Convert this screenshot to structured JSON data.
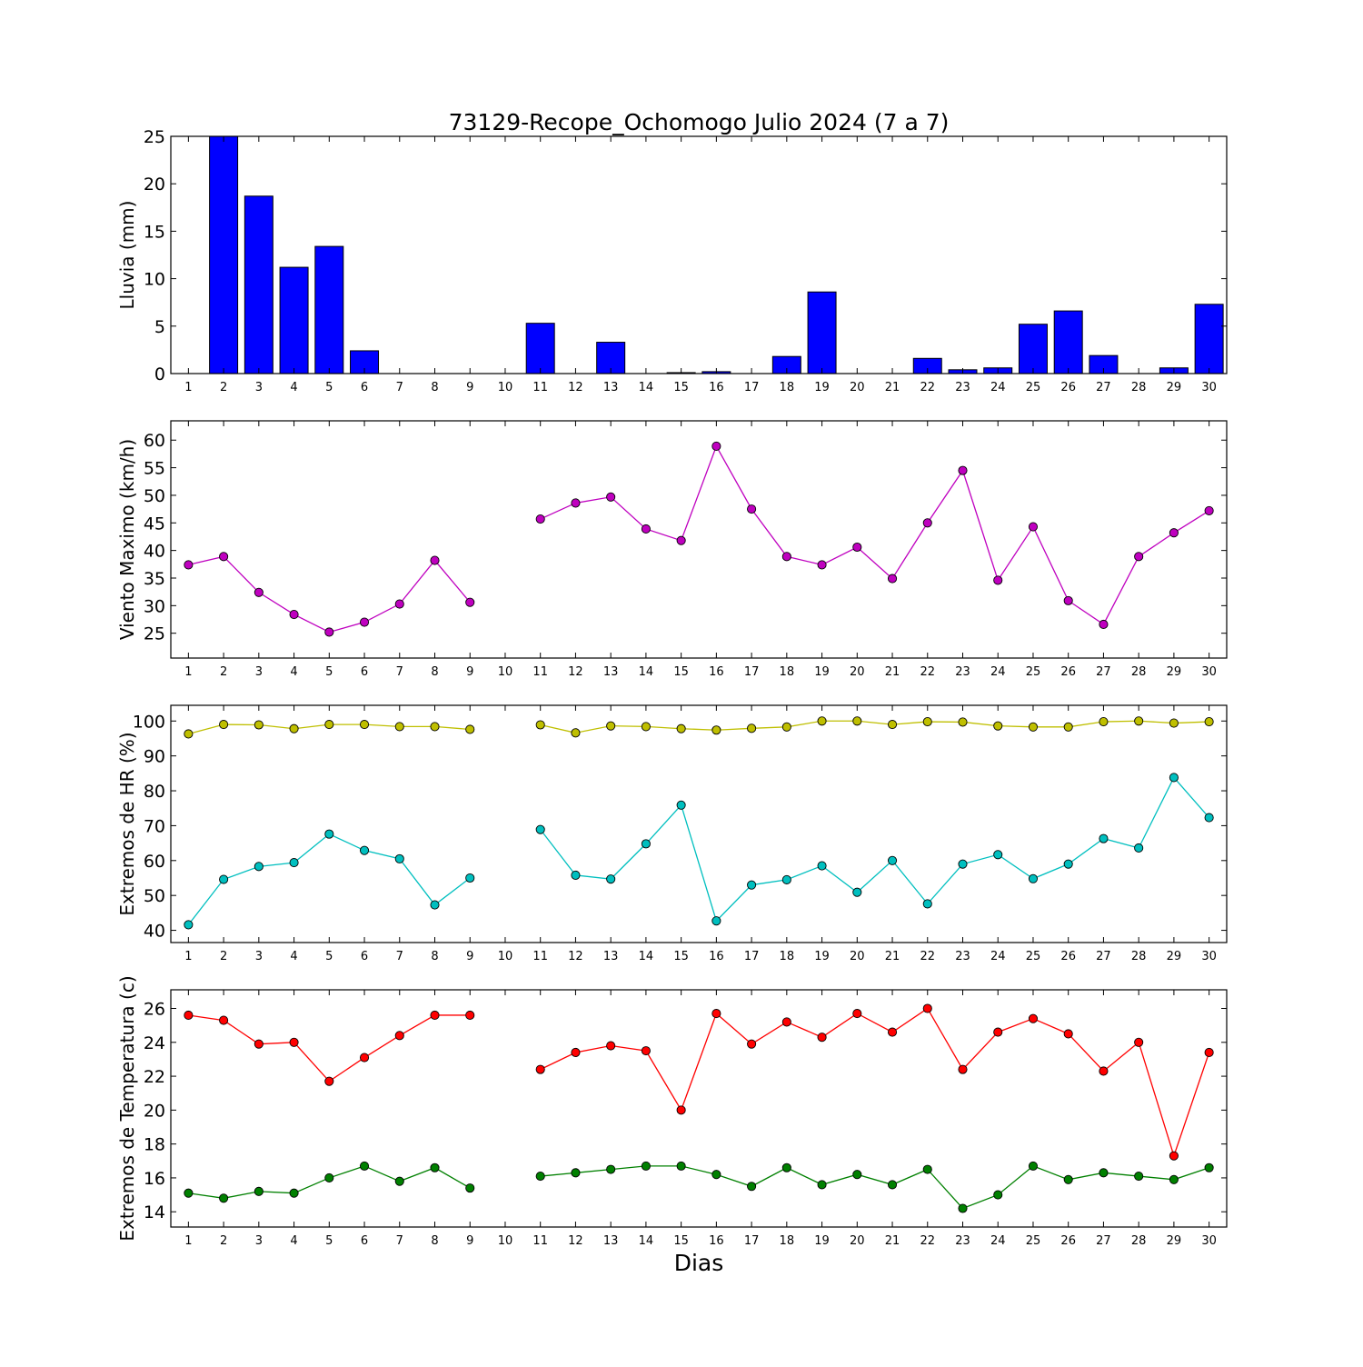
{
  "figure": {
    "title": "73129-Recope_Ochomogo Julio 2024  (7 a 7)",
    "xlabel": "Dias"
  },
  "chart_data": [
    {
      "type": "bar",
      "ylabel": "Lluvia (mm)",
      "ylim": [
        0,
        25
      ],
      "yticks": [
        0,
        5,
        10,
        15,
        20,
        25
      ],
      "categories": [
        "1",
        "2",
        "3",
        "4",
        "5",
        "6",
        "7",
        "8",
        "9",
        "10",
        "11",
        "12",
        "13",
        "14",
        "15",
        "16",
        "17",
        "18",
        "19",
        "20",
        "21",
        "22",
        "23",
        "24",
        "25",
        "26",
        "27",
        "28",
        "29",
        "30"
      ],
      "series": [
        {
          "color": "#0000ff",
          "values": [
            0,
            25,
            18.7,
            11.2,
            13.4,
            2.4,
            0,
            0,
            0,
            0,
            5.3,
            0,
            3.3,
            0,
            0.1,
            0.2,
            0,
            1.8,
            8.6,
            0,
            0,
            1.6,
            0.4,
            0.6,
            5.2,
            6.6,
            1.9,
            0,
            0.6,
            7.3
          ]
        }
      ]
    },
    {
      "type": "line",
      "ylabel": "Viento Maximo (km/h)",
      "ylim": [
        20.5,
        63.5
      ],
      "yticks": [
        25,
        30,
        35,
        40,
        45,
        50,
        55,
        60
      ],
      "categories": [
        "1",
        "2",
        "3",
        "4",
        "5",
        "6",
        "7",
        "8",
        "9",
        "10",
        "11",
        "12",
        "13",
        "14",
        "15",
        "16",
        "17",
        "18",
        "19",
        "20",
        "21",
        "22",
        "23",
        "24",
        "25",
        "26",
        "27",
        "28",
        "29",
        "30"
      ],
      "series": [
        {
          "color": "#bf00bf",
          "values": [
            37.4,
            38.9,
            32.4,
            28.4,
            25.2,
            27.0,
            30.3,
            38.2,
            30.6,
            null,
            45.7,
            48.6,
            49.7,
            43.9,
            41.8,
            58.9,
            47.5,
            38.9,
            37.4,
            40.6,
            34.9,
            45.0,
            54.5,
            34.6,
            44.3,
            30.9,
            26.6,
            38.9,
            43.2,
            47.2
          ]
        }
      ]
    },
    {
      "type": "line",
      "ylabel": "Extremos de HR (%)",
      "ylim": [
        36.5,
        104.5
      ],
      "yticks": [
        40,
        50,
        60,
        70,
        80,
        90,
        100
      ],
      "categories": [
        "1",
        "2",
        "3",
        "4",
        "5",
        "6",
        "7",
        "8",
        "9",
        "10",
        "11",
        "12",
        "13",
        "14",
        "15",
        "16",
        "17",
        "18",
        "19",
        "20",
        "21",
        "22",
        "23",
        "24",
        "25",
        "26",
        "27",
        "28",
        "29",
        "30"
      ],
      "series": [
        {
          "color": "#bfbf00",
          "values": [
            96.3,
            99,
            98.9,
            97.8,
            99,
            99,
            98.4,
            98.4,
            97.6,
            null,
            98.9,
            96.6,
            98.6,
            98.4,
            97.8,
            97.4,
            97.9,
            98.3,
            100,
            100,
            99,
            99.8,
            99.7,
            98.6,
            98.3,
            98.3,
            99.8,
            100,
            99.4,
            99.8
          ]
        },
        {
          "color": "#00bfbf",
          "values": [
            41.6,
            54.6,
            58.3,
            59.4,
            67.6,
            62.9,
            60.5,
            47.3,
            55,
            null,
            68.9,
            55.8,
            54.7,
            64.8,
            75.9,
            42.7,
            53,
            54.5,
            58.5,
            50.9,
            60,
            47.6,
            59,
            61.7,
            54.8,
            59,
            66.3,
            63.6,
            83.8,
            72.3
          ]
        }
      ]
    },
    {
      "type": "line",
      "ylabel": "Extremos de Temperatura (c)",
      "ylim": [
        13.1,
        27.1
      ],
      "yticks": [
        14,
        16,
        18,
        20,
        22,
        24,
        26
      ],
      "categories": [
        "1",
        "2",
        "3",
        "4",
        "5",
        "6",
        "7",
        "8",
        "9",
        "10",
        "11",
        "12",
        "13",
        "14",
        "15",
        "16",
        "17",
        "18",
        "19",
        "20",
        "21",
        "22",
        "23",
        "24",
        "25",
        "26",
        "27",
        "28",
        "29",
        "30"
      ],
      "series": [
        {
          "color": "#ff0000",
          "values": [
            25.6,
            25.3,
            23.9,
            24.0,
            21.7,
            23.1,
            24.4,
            25.6,
            25.6,
            null,
            22.4,
            23.4,
            23.8,
            23.5,
            20.0,
            25.7,
            23.9,
            25.2,
            24.3,
            25.7,
            24.6,
            26.0,
            22.4,
            24.6,
            25.4,
            24.5,
            22.3,
            24.0,
            17.3,
            23.4
          ]
        },
        {
          "color": "#008000",
          "values": [
            15.1,
            14.8,
            15.2,
            15.1,
            16.0,
            16.7,
            15.8,
            16.6,
            15.4,
            null,
            16.1,
            16.3,
            16.5,
            16.7,
            16.7,
            16.2,
            15.5,
            16.6,
            15.6,
            16.2,
            15.6,
            16.5,
            14.2,
            15.0,
            16.7,
            15.9,
            16.3,
            16.1,
            15.9,
            16.6
          ]
        }
      ]
    }
  ]
}
